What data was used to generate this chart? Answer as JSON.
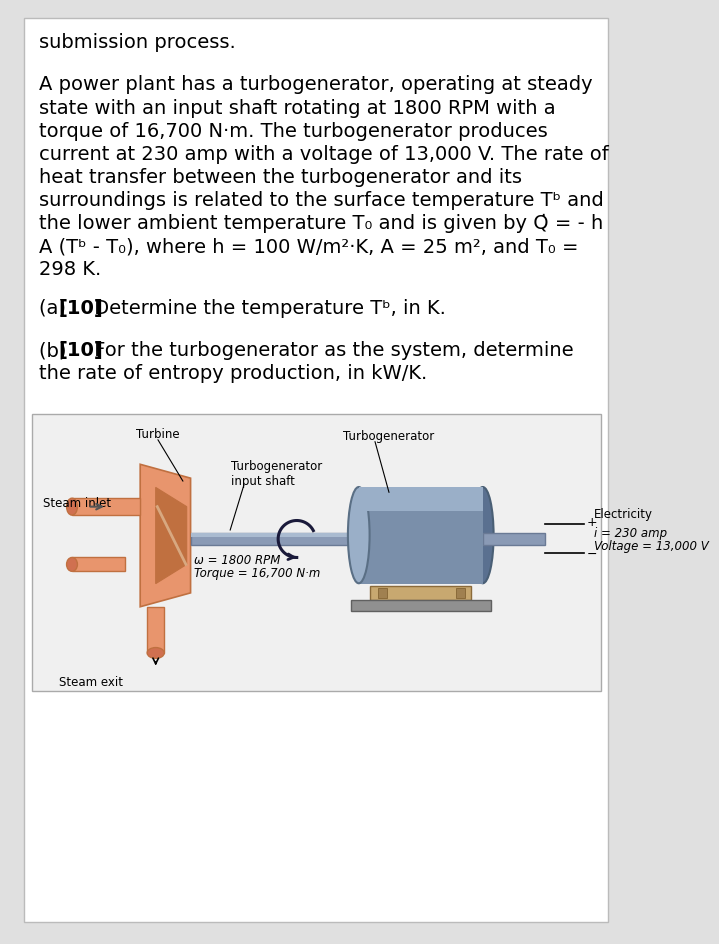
{
  "bg_color": "#e0e0e0",
  "box_color": "#ffffff",
  "text_color": "#000000",
  "line1": "submission process.",
  "para1_lines": [
    "A power plant has a turbogenerator, operating at steady",
    "state with an input shaft rotating at 1800 RPM with a",
    "torque of 16,700 N·m. The turbogenerator produces",
    "current at 230 amp with a voltage of 13,000 V. The rate of",
    "heat transfer between the turbogenerator and its",
    "surroundings is related to the surface temperature Tᵇ and",
    "the lower ambient temperature T₀ and is given by Q̇ = - h",
    "A (Tᵇ - T₀), where h = 100 W/m²·K, A = 25 m², and T₀ =",
    "298 K."
  ],
  "diagram_box_color": "#f0f0f0",
  "turbine_color": "#e8956d",
  "turbine_dark": "#c07040",
  "shaft_color": "#8a9ab5",
  "shaft_light": "#aabbd0",
  "generator_color": "#7a8faa",
  "generator_light": "#9aafc8",
  "generator_dark": "#5a7090",
  "base_color": "#c8a870",
  "platform_color": "#909090",
  "label_turbine": "Turbine",
  "label_turbogen_shaft": "Turbogenerator\ninput shaft",
  "label_turbogen": "Turbogenerator",
  "label_steam_inlet": "Steam inlet",
  "label_steam_exit": "Steam exit",
  "label_omega": "ω = 1800 RPM",
  "label_torque": "Torque = 16,700 N·m",
  "label_electricity": "Electricity",
  "label_i": "i = 230 amp",
  "label_voltage": "Voltage = 13,000 V"
}
